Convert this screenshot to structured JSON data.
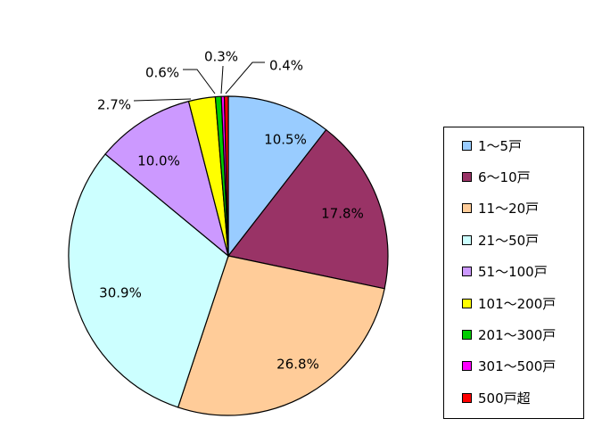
{
  "chart_data": {
    "type": "pie",
    "title": "",
    "slices": [
      {
        "label": "1～5戸",
        "value": 10.5,
        "value_label": "10.5%",
        "color": "#99ccff"
      },
      {
        "label": "6～10戸",
        "value": 17.8,
        "value_label": "17.8%",
        "color": "#993366"
      },
      {
        "label": "11～20戸",
        "value": 26.8,
        "value_label": "26.8%",
        "color": "#ffcc99"
      },
      {
        "label": "21～50戸",
        "value": 30.9,
        "value_label": "30.9%",
        "color": "#ccffff"
      },
      {
        "label": "51～100戸",
        "value": 10.0,
        "value_label": "10.0%",
        "color": "#cc99ff"
      },
      {
        "label": "101～200戸",
        "value": 2.7,
        "value_label": "2.7%",
        "color": "#ffff00"
      },
      {
        "label": "201～300戸",
        "value": 0.6,
        "value_label": "0.6%",
        "color": "#00cc00"
      },
      {
        "label": "301～500戸",
        "value": 0.3,
        "value_label": "0.3%",
        "color": "#ff00ff"
      },
      {
        "label": "500戸超",
        "value": 0.4,
        "value_label": "0.4%",
        "color": "#ff0000"
      }
    ],
    "legend_position": "right"
  }
}
